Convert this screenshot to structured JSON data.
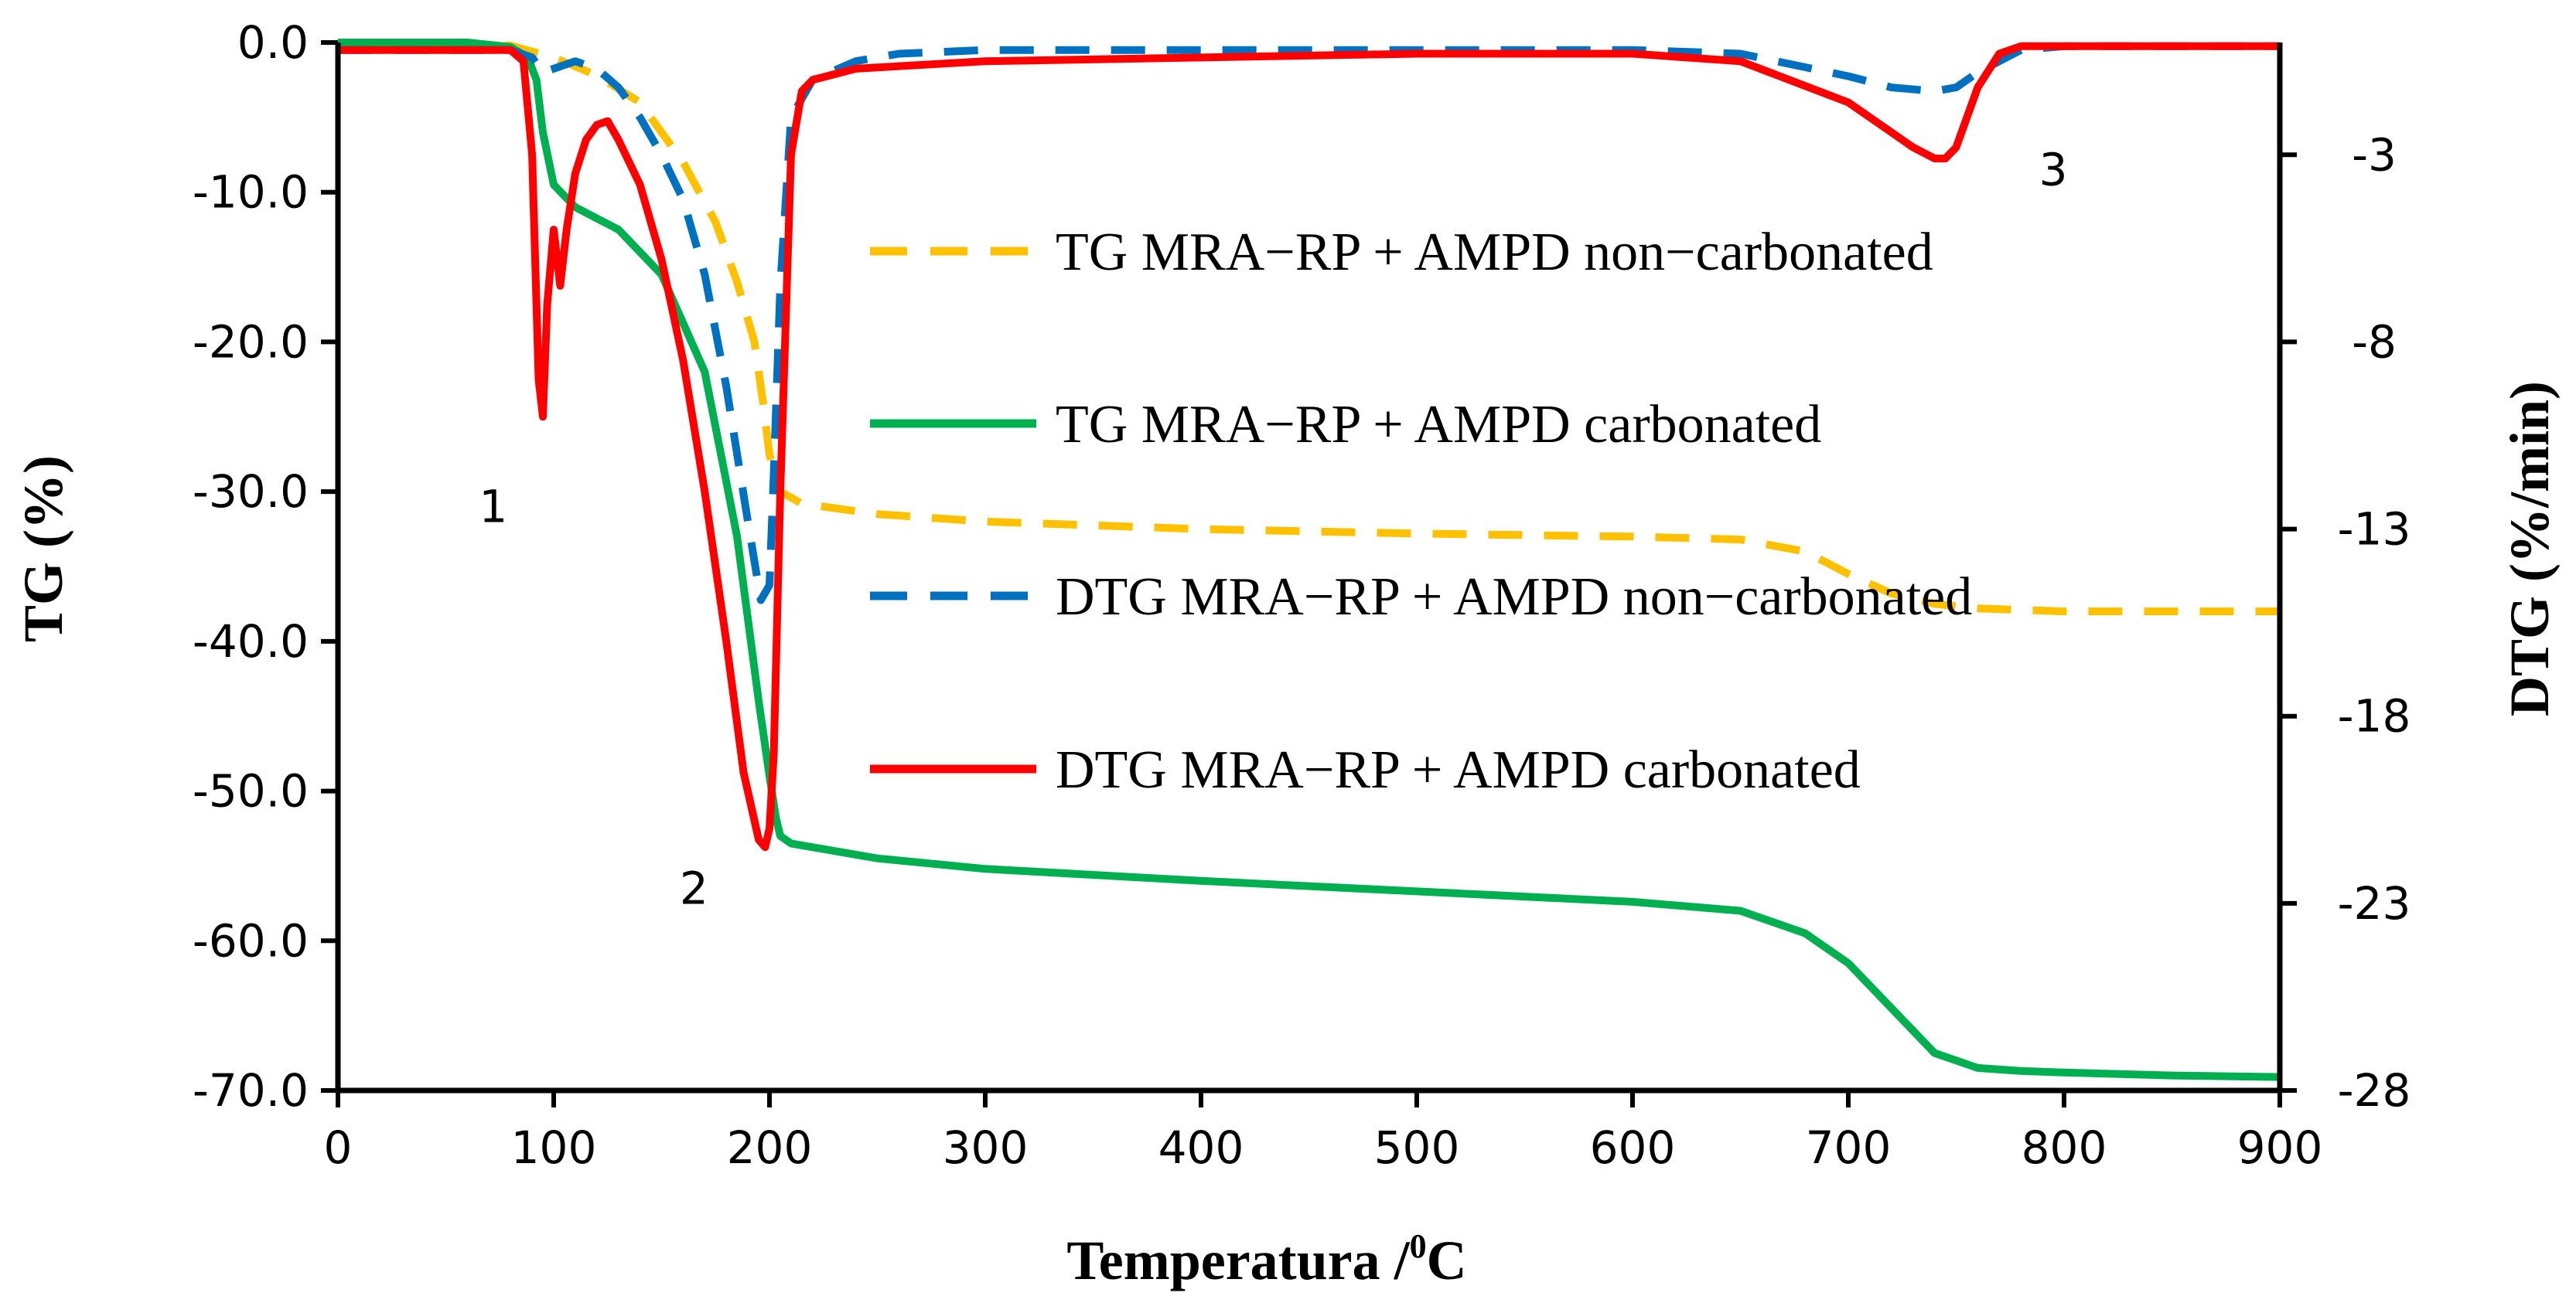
{
  "chart_data": {
    "type": "line",
    "title": "",
    "xlabel": "Temperatura /",
    "xlabel_sup": "0",
    "xlabel_unit": "C",
    "ylabel": "TG (%)",
    "y2label": "DTG  (%/min)",
    "xlim": [
      0,
      900
    ],
    "ylim": [
      -70,
      0
    ],
    "y2lim": [
      -28,
      0
    ],
    "x_ticks": [
      "0",
      "100",
      "200",
      "300",
      "400",
      "500",
      "600",
      "700",
      "800",
      "900"
    ],
    "x_tick_values": [
      0,
      100,
      200,
      300,
      400,
      500,
      600,
      700,
      800,
      900
    ],
    "y_ticks": [
      "0.0",
      "-10.0",
      "-20.0",
      "-30.0",
      "-40.0",
      "-50.0",
      "-60.0",
      "-70.0"
    ],
    "y_tick_values": [
      0,
      -10,
      -20,
      -30,
      -40,
      -50,
      -60,
      -70
    ],
    "y2_ticks": [
      "-3",
      "-8",
      "-13",
      "-18",
      "-23",
      "-28"
    ],
    "y2_tick_values": [
      -3,
      -8,
      -13,
      -18,
      -23,
      -28
    ],
    "grid": false,
    "legend_position": "center-right",
    "series": [
      {
        "name": "TG MRA−RP + AMPD non−carbonated",
        "axis": "left",
        "color": "#FFC000",
        "dash": "dashed",
        "x": [
          0,
          50,
          80,
          100,
          120,
          140,
          160,
          175,
          185,
          193,
          197,
          200,
          205,
          215,
          250,
          300,
          400,
          500,
          600,
          650,
          680,
          700,
          720,
          740,
          760,
          800,
          850,
          900
        ],
        "y": [
          0,
          0,
          -0.2,
          -1,
          -2.2,
          -4,
          -8,
          -12,
          -16,
          -20,
          -24,
          -27.5,
          -30,
          -30.8,
          -31.5,
          -32,
          -32.5,
          -32.8,
          -33,
          -33.2,
          -34,
          -35.5,
          -36.8,
          -37.5,
          -37.8,
          -38,
          -38,
          -38
        ]
      },
      {
        "name": "TG MRA−RP + AMPD carbonated",
        "axis": "left",
        "color": "#00B050",
        "dash": "solid",
        "x": [
          0,
          60,
          80,
          88,
          92,
          95,
          100,
          110,
          130,
          150,
          170,
          185,
          195,
          200,
          203,
          205,
          210,
          250,
          300,
          400,
          500,
          600,
          650,
          680,
          700,
          720,
          740,
          760,
          780,
          800,
          850,
          900
        ],
        "y": [
          0,
          0,
          -0.3,
          -1,
          -2.5,
          -6,
          -9.5,
          -11,
          -12.5,
          -15.5,
          -22,
          -33,
          -44,
          -49,
          -51.8,
          -53,
          -53.5,
          -54.5,
          -55.2,
          -56,
          -56.7,
          -57.4,
          -58,
          -59.5,
          -61.5,
          -64.5,
          -67.5,
          -68.5,
          -68.7,
          -68.8,
          -69,
          -69.1
        ]
      },
      {
        "name": "DTG MRA−RP + AMPD non−carbonated",
        "axis": "right",
        "color": "#0070C0",
        "dash": "dashed",
        "x": [
          0,
          80,
          90,
          95,
          100,
          110,
          120,
          130,
          140,
          150,
          160,
          170,
          180,
          190,
          196,
          200,
          202,
          205,
          210,
          220,
          240,
          260,
          300,
          400,
          500,
          600,
          650,
          700,
          720,
          740,
          750,
          760,
          780,
          800,
          900
        ],
        "y": [
          -0.2,
          -0.2,
          -0.4,
          -0.8,
          -0.7,
          -0.5,
          -0.7,
          -1.2,
          -2,
          -3,
          -4.2,
          -6.2,
          -9.2,
          -12.8,
          -14.9,
          -14.5,
          -11.5,
          -6.5,
          -2,
          -1,
          -0.5,
          -0.3,
          -0.2,
          -0.2,
          -0.2,
          -0.2,
          -0.3,
          -0.9,
          -1.2,
          -1.3,
          -1.2,
          -0.8,
          -0.2,
          -0.1,
          -0.1
        ]
      },
      {
        "name": "DTG MRA−RP + AMPD carbonated",
        "axis": "right",
        "color": "#FF0000",
        "dash": "solid",
        "x": [
          0,
          80,
          86,
          90,
          93,
          95,
          97,
          100,
          103,
          106,
          110,
          115,
          120,
          125,
          130,
          140,
          150,
          160,
          170,
          180,
          188,
          195,
          198,
          200,
          202,
          205,
          210,
          215,
          220,
          240,
          300,
          400,
          500,
          600,
          650,
          700,
          720,
          730,
          740,
          745,
          750,
          760,
          770,
          780,
          800,
          900
        ],
        "y": [
          -0.2,
          -0.2,
          -0.5,
          -3,
          -9,
          -10,
          -7,
          -5,
          -6.5,
          -5,
          -3.5,
          -2.6,
          -2.2,
          -2.1,
          -2.6,
          -3.8,
          -5.8,
          -8.5,
          -12,
          -16,
          -19.5,
          -21.3,
          -21.5,
          -21,
          -19,
          -12,
          -3,
          -1.3,
          -1,
          -0.7,
          -0.5,
          -0.4,
          -0.3,
          -0.3,
          -0.5,
          -1.6,
          -2.4,
          -2.8,
          -3.1,
          -3.1,
          -2.8,
          -1.2,
          -0.3,
          -0.1,
          -0.1,
          -0.1
        ]
      }
    ],
    "annotations": [
      {
        "label": "1",
        "x": 72,
        "y": -31
      },
      {
        "label": "2",
        "x": 165,
        "y": -56.5
      },
      {
        "label": "3",
        "x": 795,
        "y": -8.5
      }
    ]
  }
}
